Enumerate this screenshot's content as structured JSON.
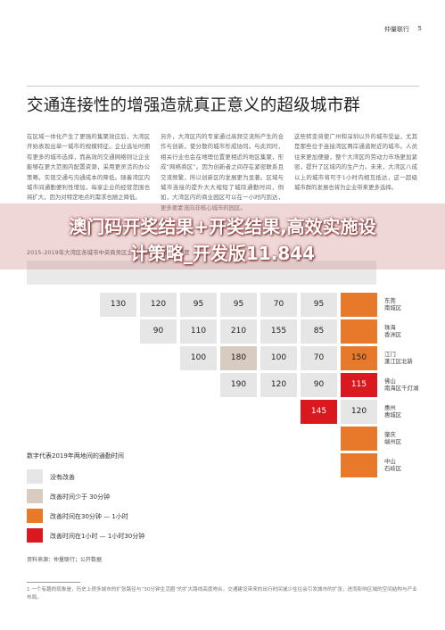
{
  "header": {
    "brand": "仲量联行",
    "page": "5"
  },
  "title": "交通连接性的增强造就真正意义的超级城市群",
  "body": [
    "在区域一体化产生了更强的集聚效应后，大湾区开始表现出单一城市的规模特征。企业选址时拥有更多的城市选择，而高效的交通网络则让企业能够在更大范围内配置资源，采用更灵活的办公策略，实现交通与沟通成本的降低。随着湾区内城市间通勤便利性增加，每家企业的经营范围也将扩大，因为对特定地点的需求也随之降低。",
    "另外，大湾区内的专家通过高频交流所产生的合作与创新，使分散的城市形成协同。与此同时，相关行业也会在地理位置更相近的地区集聚，形成“网络商区”。因为创新者之间存在紧密联系且交流频繁，所以创新区的发展更为显著。区域与城市连接的提升大大缩短了城际通勤时间，例如，大湾区内的商业园区可以在一小时内到达，更多要素流向非核心城市的园区。",
    "这些转变将使广州和深圳以外的城市受益，尤其是那些位于连接湾区两岸通道附近的城市。人员往来更加便捷，整个大湾区的劳动力市场更加紧密，提升了区域内的生产力。未来，大湾区八成以上的城市将可于1小时内相互抵达，这一超级城市群的发展也将为企业带来更多选择。"
  ],
  "chart_title": "2015–2019年大湾区各城市中央商务区之间的通勤时间改善程度",
  "overlay": [
    "澳门码开奖结果+开奖结果,高效实施设",
    "计策略_开发版11.844"
  ],
  "matrix": {
    "rows": [
      {
        "label": [
          "东莞",
          "南城区"
        ],
        "cells": [
          {
            "value": 130,
            "color": "#e6e6e6"
          },
          {
            "value": 120,
            "color": "#e6e6e6"
          },
          {
            "value": 95,
            "color": "#e6e6e6"
          },
          {
            "value": 95,
            "color": "#e6e6e6"
          },
          {
            "value": 70,
            "color": "#e6e6e6"
          },
          {
            "value": 95,
            "color": "#e6e6e6"
          },
          {
            "color": "#e8782a"
          }
        ]
      },
      {
        "label": [
          "珠海",
          "香洲区"
        ],
        "cells": [
          null,
          {
            "value": 90,
            "color": "#e6e6e6"
          },
          {
            "value": 110,
            "color": "#e6e6e6"
          },
          {
            "value": 210,
            "color": "#e6e6e6"
          },
          {
            "value": 155,
            "color": "#e6e6e6"
          },
          {
            "value": 85,
            "color": "#e6e6e6"
          },
          {
            "color": "#e8782a"
          }
        ]
      },
      {
        "label": [
          "江门",
          "蓬江区北新"
        ],
        "cells": [
          null,
          null,
          {
            "value": 100,
            "color": "#e6e6e6"
          },
          {
            "value": 180,
            "color": "#d8ccc0"
          },
          {
            "value": 100,
            "color": "#e6e6e6"
          },
          {
            "value": 70,
            "color": "#e6e6e6"
          },
          {
            "value": 150,
            "color": "#e8782a"
          }
        ]
      },
      {
        "label": [
          "佛山",
          "南海区千灯湖"
        ],
        "cells": [
          null,
          null,
          null,
          {
            "value": 190,
            "color": "#e6e6e6"
          },
          {
            "value": 120,
            "color": "#e6e6e6"
          },
          {
            "value": 90,
            "color": "#e6e6e6"
          },
          {
            "value": 115,
            "color": "#d9191f"
          }
        ]
      },
      {
        "label": [
          "惠州",
          "惠城区"
        ],
        "cells": [
          null,
          null,
          null,
          null,
          null,
          {
            "value": 145,
            "color": "#d9191f"
          },
          {
            "value": 120,
            "color": "#e6e6e6"
          }
        ]
      },
      {
        "label": [
          "肇庆",
          "端州区"
        ],
        "cells": [
          null,
          null,
          null,
          null,
          null,
          null,
          {
            "color": "#e8782a"
          }
        ]
      },
      {
        "label": [
          "中山",
          "石岐区"
        ],
        "cells": [
          null,
          null,
          null,
          null,
          null,
          null,
          {
            "color": "#e8782a"
          }
        ]
      }
    ]
  },
  "legend": {
    "title": "数字代表2019年两地间的通勤时间",
    "items": [
      {
        "label": "没有改善",
        "color": "#e6e6e6"
      },
      {
        "label": "改善时间少于 30分钟",
        "color": "#d8ccc0"
      },
      {
        "label": "改善时间在30分钟 — 1小时",
        "color": "#e8782a"
      },
      {
        "label": "改善时间在1小时 — 1小时30分钟",
        "color": "#d9191f"
      }
    ]
  },
  "source": "资料来源：仲量联行；公开数据",
  "footnote": "1 一个有趣的现象是，历史上很多城市的扩张路径与“30分钟生活圈”的扩大路线高度吻合。交通建设带来的出行时间减少往往会引发城市的扩张，进而影响区域的空间结构与产业布局。"
}
